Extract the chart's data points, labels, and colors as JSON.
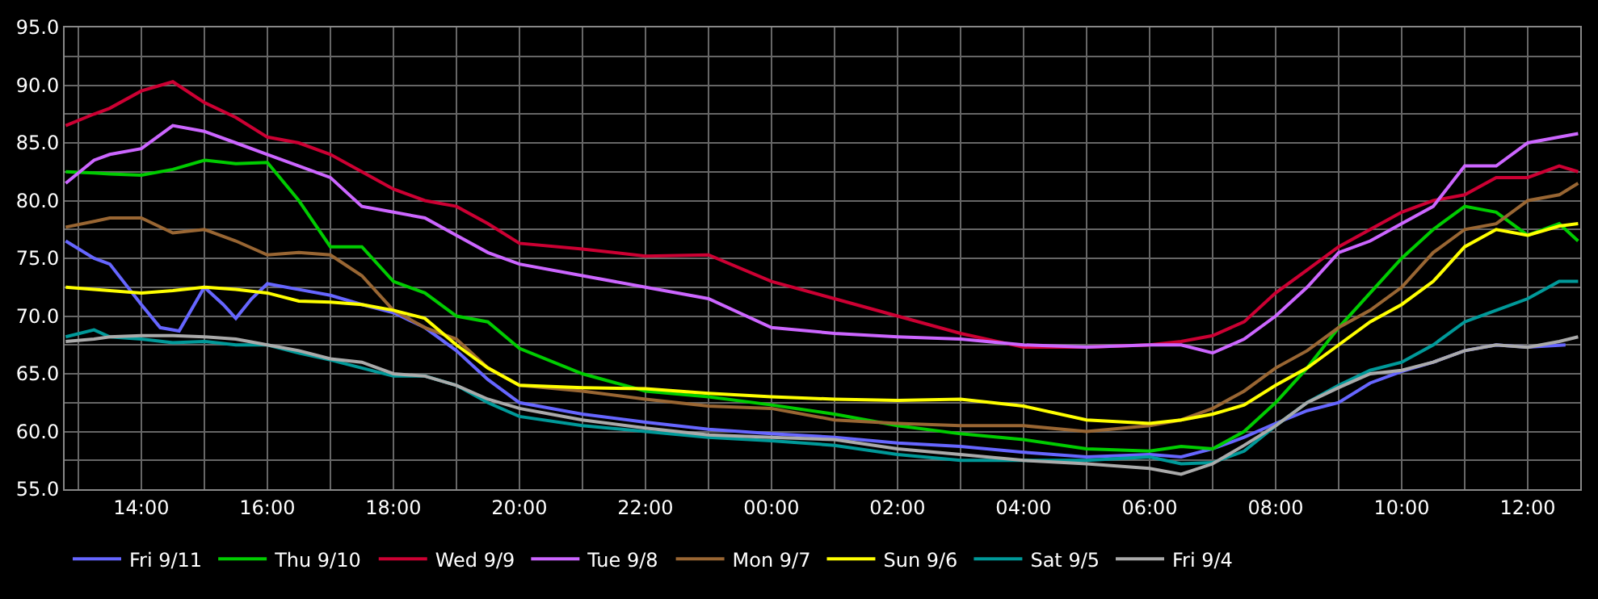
{
  "chart_data": {
    "type": "line",
    "grid": true,
    "legend": "bottom",
    "marker": "none",
    "line_style": "solid",
    "xlim": [
      "--09-11T12:47",
      "--09-12T12:50"
    ],
    "ylim": [
      55,
      95
    ],
    "xticks": [
      {
        "value": "--09-11T13:00",
        "label": null
      },
      {
        "value": "--09-11T14:00",
        "label": "14:00"
      },
      {
        "value": "--09-11T15:00",
        "label": null
      },
      {
        "value": "--09-11T16:00",
        "label": "16:00"
      },
      {
        "value": "--09-11T17:00",
        "label": null
      },
      {
        "value": "--09-11T18:00",
        "label": "18:00"
      },
      {
        "value": "--09-11T19:00",
        "label": null
      },
      {
        "value": "--09-11T20:00",
        "label": "20:00"
      },
      {
        "value": "--09-11T21:00",
        "label": null
      },
      {
        "value": "--09-11T22:00",
        "label": "22:00"
      },
      {
        "value": "--09-11T23:00",
        "label": null
      },
      {
        "value": "--09-12T00:00",
        "label": "00:00"
      },
      {
        "value": "--09-12T01:00",
        "label": null
      },
      {
        "value": "--09-12T02:00",
        "label": "02:00"
      },
      {
        "value": "--09-12T03:00",
        "label": null
      },
      {
        "value": "--09-12T04:00",
        "label": "04:00"
      },
      {
        "value": "--09-12T05:00",
        "label": null
      },
      {
        "value": "--09-12T06:00",
        "label": "06:00"
      },
      {
        "value": "--09-12T07:00",
        "label": null
      },
      {
        "value": "--09-12T08:00",
        "label": "08:00"
      },
      {
        "value": "--09-12T09:00",
        "label": null
      },
      {
        "value": "--09-12T10:00",
        "label": "10:00"
      },
      {
        "value": "--09-12T11:00",
        "label": null
      },
      {
        "value": "--09-12T12:00",
        "label": "12:00"
      }
    ],
    "yticks": [
      {
        "value": 55,
        "label": "55.0"
      },
      {
        "value": 57.5,
        "label": null
      },
      {
        "value": 60,
        "label": "60.0"
      },
      {
        "value": 62.5,
        "label": null
      },
      {
        "value": 65,
        "label": "65.0"
      },
      {
        "value": 67.5,
        "label": null
      },
      {
        "value": 70,
        "label": "70.0"
      },
      {
        "value": 72.5,
        "label": null
      },
      {
        "value": 75,
        "label": "75.0"
      },
      {
        "value": 77.5,
        "label": null
      },
      {
        "value": 80,
        "label": "80.0"
      },
      {
        "value": 82.5,
        "label": null
      },
      {
        "value": 85,
        "label": "85.0"
      },
      {
        "value": 87.5,
        "label": null
      },
      {
        "value": 90,
        "label": "90.0"
      },
      {
        "value": 92.5,
        "label": null
      },
      {
        "value": 95,
        "label": "95.0"
      }
    ],
    "x": [
      "--09-11T12:48",
      "--09-11T13:15",
      "--09-11T13:30",
      "--09-11T14:00",
      "--09-11T14:30",
      "--09-11T15:00",
      "--09-11T15:30",
      "--09-11T16:00",
      "--09-11T16:30",
      "--09-11T17:00",
      "--09-11T17:30",
      "--09-11T18:00",
      "--09-11T18:30",
      "--09-11T19:00",
      "--09-11T19:30",
      "--09-11T20:00",
      "--09-11T21:00",
      "--09-11T22:00",
      "--09-11T23:00",
      "--09-12T00:00",
      "--09-12T01:00",
      "--09-12T02:00",
      "--09-12T03:00",
      "--09-12T04:00",
      "--09-12T05:00",
      "--09-12T06:00",
      "--09-12T06:30",
      "--09-12T07:00",
      "--09-12T07:30",
      "--09-12T08:00",
      "--09-12T08:30",
      "--09-12T09:00",
      "--09-12T09:30",
      "--09-12T10:00",
      "--09-12T10:30",
      "--09-12T11:00",
      "--09-12T11:30",
      "--09-12T12:00",
      "--09-12T12:30",
      "--09-12T12:48"
    ],
    "series": [
      {
        "name": "Fri 9/11",
        "color": "#6666ff",
        "x": [
          "--09-11T12:48",
          "--09-11T13:15",
          "--09-11T13:30",
          "--09-11T14:00",
          "--09-11T14:18",
          "--09-11T14:36",
          "--09-11T15:00",
          "--09-11T15:18",
          "--09-11T15:30",
          "--09-11T15:45",
          "--09-11T16:00",
          "--09-11T16:30",
          "--09-11T17:00",
          "--09-11T17:30",
          "--09-11T18:00",
          "--09-11T18:30",
          "--09-11T19:00",
          "--09-11T19:30",
          "--09-11T20:00",
          "--09-11T21:00",
          "--09-11T22:00",
          "--09-11T23:00",
          "--09-12T00:00",
          "--09-12T01:00",
          "--09-12T02:00",
          "--09-12T03:00",
          "--09-12T04:00",
          "--09-12T05:00",
          "--09-12T06:00",
          "--09-12T06:30",
          "--09-12T07:00",
          "--09-12T07:30",
          "--09-12T08:00",
          "--09-12T08:30",
          "--09-12T09:00",
          "--09-12T09:30",
          "--09-12T10:00",
          "--09-12T10:30",
          "--09-12T11:00",
          "--09-12T11:30",
          "--09-12T12:00",
          "--09-12T12:36"
        ],
        "values": [
          76.5,
          75,
          74.5,
          71,
          69,
          68.7,
          72.5,
          71,
          69.8,
          71.5,
          72.8,
          72.3,
          71.8,
          71,
          70.3,
          69,
          67,
          64.5,
          62.5,
          61.5,
          60.8,
          60.2,
          59.8,
          59.5,
          59,
          58.7,
          58.2,
          57.8,
          58,
          57.8,
          58.5,
          59.5,
          60.7,
          61.8,
          62.5,
          64.2,
          65.2,
          66,
          67,
          67.5,
          67.3,
          67.5
        ]
      },
      {
        "name": "Thu 9/10",
        "color": "#00cc00",
        "values": [
          82.5,
          82.4,
          82.3,
          82.2,
          82.7,
          83.5,
          83.2,
          83.3,
          80,
          76,
          76,
          73,
          72,
          70,
          69.5,
          67.2,
          65,
          63.5,
          63,
          62.3,
          61.5,
          60.5,
          59.8,
          59.3,
          58.5,
          58.3,
          58.7,
          58.5,
          60,
          62.5,
          65.5,
          69,
          72,
          75,
          77.5,
          79.5,
          79,
          77,
          78,
          76.5
        ]
      },
      {
        "name": "Wed 9/9",
        "color": "#cc0033",
        "values": [
          86.5,
          87.5,
          88,
          89.5,
          90.3,
          88.5,
          87.2,
          85.5,
          85,
          84,
          82.5,
          81,
          80,
          79.5,
          78,
          76.3,
          75.8,
          75.2,
          75.3,
          73,
          71.5,
          70,
          68.5,
          67.3,
          67.3,
          67.5,
          67.8,
          68.3,
          69.5,
          72,
          74,
          76,
          77.5,
          79,
          80,
          80.5,
          82,
          82,
          83,
          82.5
        ]
      },
      {
        "name": "Tue 9/8",
        "color": "#cc66ff",
        "values": [
          81.5,
          83.5,
          84,
          84.5,
          86.5,
          86,
          85,
          84,
          83,
          82,
          79.5,
          79,
          78.5,
          77,
          75.5,
          74.5,
          73.5,
          72.5,
          71.5,
          69,
          68.5,
          68.2,
          68,
          67.5,
          67.3,
          67.5,
          67.5,
          66.8,
          68,
          70,
          72.5,
          75.5,
          76.5,
          78,
          79.5,
          83,
          83,
          85,
          85.5,
          85.8
        ]
      },
      {
        "name": "Mon 9/7",
        "color": "#996633",
        "values": [
          77.7,
          78.2,
          78.5,
          78.5,
          77.2,
          77.5,
          76.5,
          75.3,
          75.5,
          75.3,
          73.5,
          70.5,
          69,
          68,
          65.5,
          64,
          63.5,
          62.8,
          62.2,
          62,
          61,
          60.7,
          60.5,
          60.5,
          60,
          60.5,
          61,
          62,
          63.5,
          65.5,
          67,
          69,
          70.5,
          72.5,
          75.5,
          77.5,
          78,
          80,
          80.5,
          81.5
        ]
      },
      {
        "name": "Sun 9/6",
        "color": "#ffff00",
        "values": [
          72.5,
          72.3,
          72.2,
          72,
          72.2,
          72.5,
          72.3,
          72,
          71.3,
          71.2,
          71,
          70.5,
          69.8,
          67.5,
          65.5,
          64,
          63.8,
          63.7,
          63.3,
          63,
          62.8,
          62.7,
          62.8,
          62.2,
          61,
          60.7,
          61,
          61.5,
          62.3,
          64,
          65.5,
          67.5,
          69.5,
          71,
          73,
          76,
          77.5,
          77,
          77.8,
          78
        ]
      },
      {
        "name": "Sat 9/5",
        "color": "#009999",
        "values": [
          68.2,
          68.8,
          68.2,
          68,
          67.7,
          67.8,
          67.5,
          67.5,
          66.8,
          66.2,
          65.5,
          64.8,
          64.8,
          64,
          62.5,
          61.3,
          60.5,
          60,
          59.5,
          59.2,
          58.8,
          58,
          57.5,
          57.5,
          57.5,
          57.8,
          57.2,
          57.3,
          58.3,
          60.5,
          62.5,
          64,
          65.3,
          66,
          67.5,
          69.5,
          70.5,
          71.5,
          73,
          73
        ]
      },
      {
        "name": "Fri 9/4",
        "color": "#aaaaaa",
        "values": [
          67.8,
          68,
          68.2,
          68.3,
          68.3,
          68.2,
          68,
          67.5,
          67,
          66.3,
          66,
          65,
          64.8,
          64,
          62.8,
          62,
          61,
          60.3,
          59.7,
          59.5,
          59.3,
          58.5,
          58,
          57.5,
          57.2,
          56.8,
          56.3,
          57.2,
          58.8,
          60.5,
          62.5,
          63.8,
          65,
          65.3,
          66,
          67,
          67.5,
          67.3,
          67.8,
          68.2
        ]
      }
    ]
  }
}
